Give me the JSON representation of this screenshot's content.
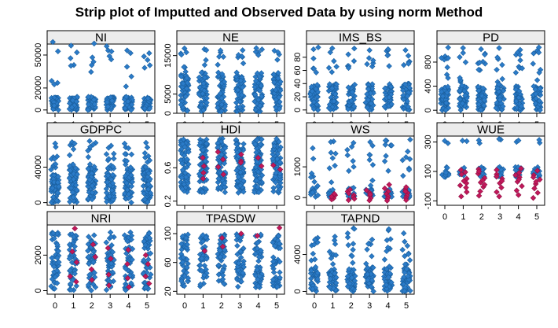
{
  "chart_data": {
    "type": "scatter",
    "title": "Strip plot of Imputted and Observed Data by using norm Method",
    "x_ticks": [
      "0",
      "1",
      "2",
      "3",
      "4",
      "5"
    ],
    "colors": {
      "observed": "#2b7bc8",
      "imputed": "#c2185b",
      "strip": "#ececec",
      "border": "#000000"
    },
    "panels": [
      {
        "name": "NI",
        "ylim": [
          -3000,
          60000
        ],
        "y_ticks": [
          "0",
          "20000",
          "50000"
        ],
        "y_tick_values": [
          0,
          20000,
          50000
        ],
        "observed_levels": [
          [
            0,
            12000,
            40
          ],
          [
            20000,
            62000,
            5
          ]
        ],
        "imputed": []
      },
      {
        "name": "NE",
        "ylim": [
          0,
          18000
        ],
        "y_ticks": [
          "0",
          "5000",
          "15000"
        ],
        "y_tick_values": [
          0,
          5000,
          15000
        ],
        "observed_levels": [
          [
            500,
            10000,
            50
          ],
          [
            10000,
            17000,
            7
          ]
        ],
        "imputed": []
      },
      {
        "name": "IMS_BS",
        "ylim": [
          -5,
          100
        ],
        "y_ticks": [
          "0",
          "20",
          "40",
          "60",
          "80"
        ],
        "y_tick_values": [
          0,
          20,
          40,
          60,
          80
        ],
        "observed_levels": [
          [
            0,
            40,
            40
          ],
          [
            55,
            95,
            6
          ]
        ],
        "imputed": []
      },
      {
        "name": "PD",
        "ylim": [
          -50,
          1100
        ],
        "y_ticks": [
          "0",
          "400",
          "800"
        ],
        "y_tick_values": [
          0,
          400,
          800
        ],
        "observed_levels": [
          [
            0,
            400,
            45
          ],
          [
            400,
            1050,
            9
          ]
        ],
        "imputed": []
      },
      {
        "name": "GDPPC",
        "ylim": [
          -3000,
          75000
        ],
        "y_ticks": [
          "0",
          "40000"
        ],
        "y_tick_values": [
          0,
          40000
        ],
        "observed_levels": [
          [
            0,
            40000,
            55
          ],
          [
            40000,
            70000,
            9
          ]
        ],
        "imputed": []
      },
      {
        "name": "HDI",
        "ylim": [
          0.15,
          0.98
        ],
        "y_ticks": [
          "0.2",
          "0.6"
        ],
        "y_tick_values": [
          0.2,
          0.6
        ],
        "observed_levels": [
          [
            0.3,
            0.95,
            70
          ]
        ],
        "imputed": [
          [
            1,
            0.72
          ],
          [
            1,
            0.62
          ],
          [
            1,
            0.54
          ],
          [
            1,
            0.47
          ],
          [
            2,
            0.79
          ],
          [
            2,
            0.7
          ],
          [
            2,
            0.61
          ],
          [
            2,
            0.52
          ],
          [
            3,
            0.76
          ],
          [
            3,
            0.68
          ],
          [
            3,
            0.66
          ],
          [
            4,
            0.72
          ],
          [
            4,
            0.62
          ],
          [
            5,
            0.63
          ],
          [
            5,
            0.58
          ]
        ]
      },
      {
        "name": "WS",
        "ylim": [
          -250,
          2000
        ],
        "y_ticks": [
          "0",
          "1000"
        ],
        "y_tick_values": [
          0,
          1000
        ],
        "observed_levels": [
          [
            0,
            300,
            12
          ],
          [
            300,
            1900,
            8
          ]
        ],
        "imputed": [
          [
            1,
            50
          ],
          [
            1,
            10
          ],
          [
            1,
            -20
          ],
          [
            1,
            80
          ],
          [
            1,
            -60
          ],
          [
            1,
            120
          ],
          [
            1,
            30
          ],
          [
            2,
            200
          ],
          [
            2,
            80
          ],
          [
            2,
            20
          ],
          [
            2,
            -40
          ],
          [
            2,
            140
          ],
          [
            2,
            260
          ],
          [
            2,
            -80
          ],
          [
            3,
            150
          ],
          [
            3,
            60
          ],
          [
            3,
            -20
          ],
          [
            3,
            240
          ],
          [
            3,
            100
          ],
          [
            3,
            -90
          ],
          [
            4,
            420
          ],
          [
            4,
            200
          ],
          [
            4,
            120
          ],
          [
            4,
            40
          ],
          [
            4,
            -30
          ],
          [
            4,
            300
          ],
          [
            4,
            -100
          ],
          [
            5,
            260
          ],
          [
            5,
            150
          ],
          [
            5,
            60
          ],
          [
            5,
            -10
          ],
          [
            5,
            -80
          ],
          [
            5,
            340
          ],
          [
            5,
            200
          ]
        ]
      },
      {
        "name": "WUE",
        "ylim": [
          -130,
          340
        ],
        "y_ticks": [
          "-100",
          "100",
          "300"
        ],
        "y_tick_values": [
          -100,
          100,
          300
        ],
        "observed_levels": [
          [
            60,
            130,
            12
          ],
          [
            290,
            320,
            2
          ]
        ],
        "imputed": [
          [
            1,
            110
          ],
          [
            1,
            80
          ],
          [
            1,
            50
          ],
          [
            1,
            20
          ],
          [
            1,
            -10
          ],
          [
            1,
            -40
          ],
          [
            1,
            -70
          ],
          [
            1,
            95
          ],
          [
            1,
            35
          ],
          [
            1,
            5
          ],
          [
            2,
            115
          ],
          [
            2,
            85
          ],
          [
            2,
            55
          ],
          [
            2,
            25
          ],
          [
            2,
            -5
          ],
          [
            2,
            -35
          ],
          [
            2,
            -65
          ],
          [
            2,
            100
          ],
          [
            2,
            40
          ],
          [
            2,
            10
          ],
          [
            3,
            110
          ],
          [
            3,
            80
          ],
          [
            3,
            50
          ],
          [
            3,
            20
          ],
          [
            3,
            -10
          ],
          [
            3,
            -40
          ],
          [
            3,
            -70
          ],
          [
            3,
            65
          ],
          [
            3,
            35
          ],
          [
            4,
            120
          ],
          [
            4,
            90
          ],
          [
            4,
            60
          ],
          [
            4,
            30
          ],
          [
            4,
            0
          ],
          [
            4,
            -30
          ],
          [
            4,
            -60
          ],
          [
            4,
            75
          ],
          [
            4,
            45
          ],
          [
            5,
            105
          ],
          [
            5,
            75
          ],
          [
            5,
            45
          ],
          [
            5,
            15
          ],
          [
            5,
            -15
          ],
          [
            5,
            -45
          ],
          [
            5,
            -80
          ],
          [
            5,
            60
          ],
          [
            5,
            30
          ]
        ]
      },
      {
        "name": "NRI",
        "ylim": [
          -200,
          3700
        ],
        "y_ticks": [
          "0",
          "2000"
        ],
        "y_tick_values": [
          0,
          2000
        ],
        "observed_levels": [
          [
            0,
            3300,
            45
          ]
        ],
        "imputed": [
          [
            1,
            3500
          ],
          [
            1,
            2200
          ],
          [
            1,
            1600
          ],
          [
            1,
            800
          ],
          [
            1,
            500
          ],
          [
            2,
            2600
          ],
          [
            2,
            1900
          ],
          [
            2,
            1200
          ],
          [
            2,
            600
          ],
          [
            3,
            2400
          ],
          [
            3,
            1800
          ],
          [
            3,
            900
          ],
          [
            3,
            300
          ],
          [
            4,
            2300
          ],
          [
            4,
            1500
          ],
          [
            4,
            700
          ],
          [
            4,
            200
          ],
          [
            5,
            2000
          ],
          [
            5,
            1500
          ],
          [
            5,
            800
          ],
          [
            5,
            400
          ]
        ]
      },
      {
        "name": "TPASDW",
        "ylim": [
          16,
          112
        ],
        "y_ticks": [
          "20",
          "60",
          "100"
        ],
        "y_tick_values": [
          20,
          60,
          100
        ],
        "observed_levels": [
          [
            25,
            100,
            45
          ]
        ],
        "imputed": [
          [
            1,
            76
          ],
          [
            2,
            82
          ],
          [
            2,
            94
          ],
          [
            3,
            100
          ],
          [
            4,
            97
          ],
          [
            5,
            108
          ]
        ]
      },
      {
        "name": "TAPND",
        "ylim": [
          -300,
          7200
        ],
        "y_ticks": [
          "0",
          "4000"
        ],
        "y_tick_values": [
          0,
          4000
        ],
        "observed_levels": [
          [
            0,
            2500,
            40
          ],
          [
            2500,
            7000,
            10
          ]
        ],
        "imputed": []
      }
    ]
  }
}
